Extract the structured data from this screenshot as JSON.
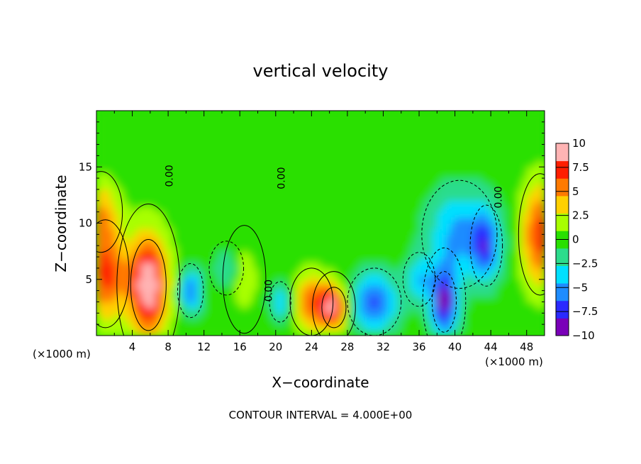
{
  "chart_data": {
    "type": "heatmap",
    "title": "vertical velocity",
    "xlabel": "X−coordinate",
    "ylabel": "Z−coordinate",
    "x_unit_note": "(×1000 m)",
    "x_unit_note_right": "(×1000 m)",
    "footer": "CONTOUR INTERVAL = 4.000E+00",
    "xlim": [
      0,
      50
    ],
    "ylim": [
      0,
      20
    ],
    "x_ticks": [
      4,
      8,
      12,
      16,
      20,
      24,
      28,
      32,
      36,
      40,
      44,
      48
    ],
    "x_tick_labels": [
      "4",
      "8",
      "12",
      "16",
      "20",
      "24",
      "28",
      "32",
      "36",
      "40",
      "44",
      "48"
    ],
    "y_ticks": [
      5,
      10,
      15
    ],
    "y_tick_labels": [
      "5",
      "10",
      "15"
    ],
    "colorbar": {
      "range": [
        -10,
        10
      ],
      "ticks": [
        10,
        7.5,
        5,
        2.5,
        0,
        -2.5,
        -5,
        -7.5,
        -10
      ],
      "tick_labels": [
        "10",
        "7.5",
        "5",
        "2.5",
        "0",
        "−2.5",
        "−5",
        "−7.5",
        "−10"
      ],
      "colors": [
        "#7a00b8",
        "#2a2aff",
        "#1e8cff",
        "#00e0ff",
        "#2cdc8c",
        "#29e000",
        "#a8ff00",
        "#ffd000",
        "#ff7a00",
        "#ff1e00",
        "#ffb4b4"
      ]
    },
    "contour_labels": [
      {
        "text": "0.00",
        "x": 8.5,
        "z": 14.2
      },
      {
        "text": "0.00",
        "x": 21.0,
        "z": 14.0
      },
      {
        "text": "0.00",
        "x": 19.6,
        "z": 4.0
      },
      {
        "text": "0.00",
        "x": 45.2,
        "z": 12.3
      }
    ],
    "features": [
      {
        "x": 5.8,
        "z": 4.5,
        "value": 10,
        "sx": 2.2,
        "sz": 4.5
      },
      {
        "x": 1.0,
        "z": 5.5,
        "value": 7,
        "sx": 2.2,
        "sz": 4.0
      },
      {
        "x": 49.5,
        "z": 9.0,
        "value": 7,
        "sx": 2.0,
        "sz": 4.5
      },
      {
        "x": 24.0,
        "z": 3.0,
        "value": 6,
        "sx": 2.0,
        "sz": 2.5
      },
      {
        "x": 26.5,
        "z": 2.5,
        "value": 8,
        "sx": 1.5,
        "sz": 2.0
      },
      {
        "x": 31.0,
        "z": 3.0,
        "value": -7,
        "sx": 2.5,
        "sz": 2.5
      },
      {
        "x": 38.8,
        "z": 3.0,
        "value": -9,
        "sx": 1.5,
        "sz": 3.0
      },
      {
        "x": 40.5,
        "z": 9.0,
        "value": -5,
        "sx": 3.5,
        "sz": 4.0
      },
      {
        "x": 43.5,
        "z": 8.0,
        "value": -6,
        "sx": 1.5,
        "sz": 3.0
      },
      {
        "x": 10.5,
        "z": 4.0,
        "value": -6,
        "sx": 1.2,
        "sz": 2.0
      },
      {
        "x": 20.5,
        "z": 3.0,
        "value": -5,
        "sx": 1.0,
        "sz": 1.5
      },
      {
        "x": 14.5,
        "z": 6.0,
        "value": -3,
        "sx": 1.2,
        "sz": 1.5
      },
      {
        "x": 16.5,
        "z": 5.0,
        "value": 2,
        "sx": 1.5,
        "sz": 3.0
      },
      {
        "x": 0.5,
        "z": 11.0,
        "value": 4,
        "sx": 2.0,
        "sz": 3.0
      },
      {
        "x": 36.0,
        "z": 5.0,
        "value": -4,
        "sx": 1.5,
        "sz": 2.0
      }
    ]
  }
}
